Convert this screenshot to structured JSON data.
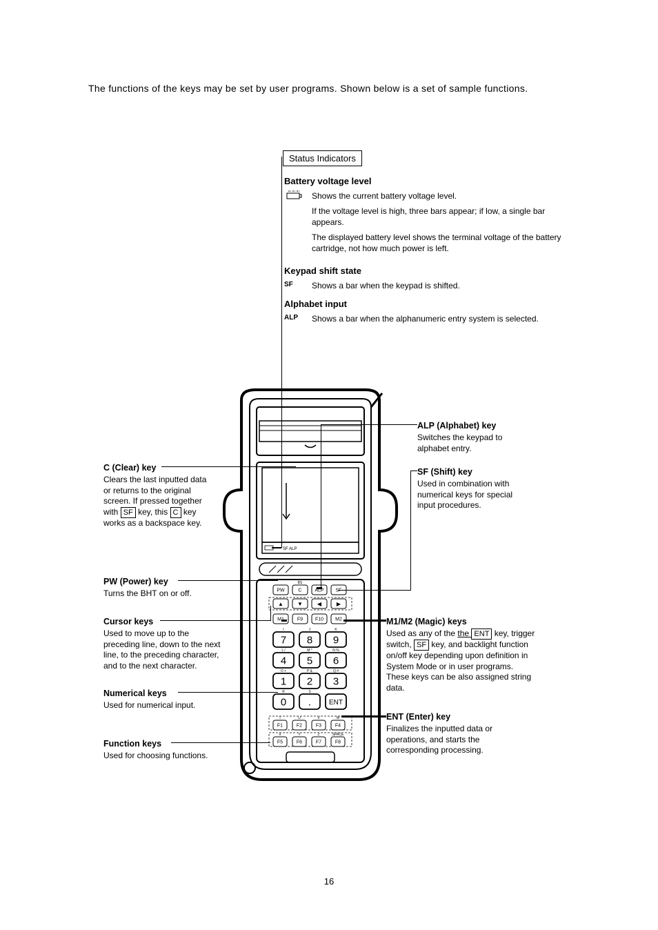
{
  "intro": "The functions of the keys may be set by user programs.  Shown below is a set of sample functions.",
  "status_indicators_label": "Status Indicators",
  "status": {
    "battery": {
      "heading": "Battery voltage level",
      "p1": "Shows the current battery voltage level.",
      "p2": "If the voltage level is high, three bars appear; if low, a single bar appears.",
      "p3": "The displayed battery level shows the terminal voltage of the battery cartridge, not how much power is left."
    },
    "shift": {
      "heading": "Keypad shift state",
      "label": "SF",
      "desc": "Shows a bar when the keypad is shifted."
    },
    "alp": {
      "heading": "Alphabet input",
      "label": "ALP",
      "desc": "Shows a bar when the alphanumeric entry system is selected."
    }
  },
  "callouts": {
    "c_key": {
      "title": "C (Clear) key",
      "pre": "Clears the last inputted data or returns to the original screen.  If pressed together with ",
      "key1": "SF",
      "mid1": " key, this ",
      "key2": "C",
      "post": " key works as a backspace key."
    },
    "pw_key": {
      "title": "PW (Power) key",
      "desc": "Turns the BHT on or off."
    },
    "cursor": {
      "title": "Cursor keys",
      "desc": "Used to move up to the preceding line, down to the next line, to the preceding character, and to the next character."
    },
    "num": {
      "title": "Numerical keys",
      "desc": "Used for numerical input."
    },
    "fn": {
      "title": "Function keys",
      "desc": "Used for choosing functions."
    },
    "alp_key": {
      "title": "ALP (Alphabet) key",
      "desc": "Switches the keypad to alphabet entry."
    },
    "sf_key": {
      "title": "SF (Shift) key",
      "desc": "Used in combination with numerical keys for special input procedures."
    },
    "magic": {
      "title": "M1/M2 (Magic) keys",
      "pre": "Used as any of the ",
      "key1": "ENT",
      "mid1": " key, trigger switch, ",
      "key2": "SF",
      "post": " key, and backlight function on/off key depending upon definition in System Mode or in user programs.  These keys can be also assigned string data."
    },
    "ent": {
      "title": "ENT (Enter) key",
      "desc": "Finalizes the inputted data or operations, and starts the corresponding processing."
    }
  },
  "page_number": "16",
  "keypad": {
    "row_small1": [
      "PW",
      "C",
      "ALP",
      "SF"
    ],
    "arrows": [
      "▲",
      "▼",
      "◀",
      "▶"
    ],
    "row_small2": [
      "M1",
      "F9",
      "F10",
      "M2"
    ],
    "nums": [
      [
        "7",
        "8",
        "9"
      ],
      [
        "4",
        "5",
        "6"
      ],
      [
        "1",
        "2",
        "3"
      ],
      [
        "0",
        ".",
        "ENT"
      ]
    ],
    "num_alpha_top": [
      "I",
      "J",
      "K"
    ],
    "num_alpha_mid": [
      "L  /",
      "M  *",
      "N  %"
    ],
    "num_alpha_789": [
      "O  +",
      "P  &",
      "Q  #"
    ],
    "num_alpha_bot": [
      "R",
      "S",
      ""
    ],
    "row_f1": [
      "F1",
      "F2",
      "F3",
      "F4"
    ],
    "row_f1_top": [
      "T",
      "U",
      "V",
      "W"
    ],
    "row_f2": [
      "F5",
      "F6",
      "F7",
      "F8"
    ],
    "row_f2_top": [
      "X",
      "Y",
      "Z",
      "SPACE"
    ],
    "status_small": "SF ALP",
    "bs_label": "BS"
  }
}
